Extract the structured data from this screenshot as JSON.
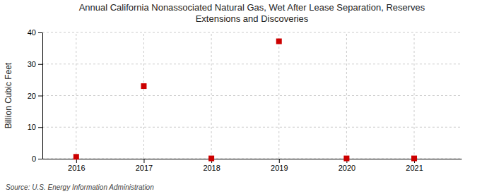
{
  "chart_data": {
    "type": "scatter",
    "title": "Annual California Nonassociated Natural Gas, Wet After Lease Separation, Reserves\nExtensions and Discoveries",
    "y_label": "Billion Cubic Feet",
    "source": "Source: U.S. Energy Information Administration",
    "x": [
      2016,
      2017,
      2018,
      2019,
      2020,
      2021
    ],
    "values": [
      0.6,
      23.0,
      0.1,
      37.2,
      0.1,
      0.1
    ],
    "xlim": [
      2015.5,
      2021.7
    ],
    "ylim": [
      0,
      40
    ],
    "xticks": [
      2016,
      2017,
      2018,
      2019,
      2020,
      2021
    ],
    "yticks": [
      0,
      10,
      20,
      30,
      40
    ],
    "color": "#cc0000",
    "marker": "square",
    "grid": true
  }
}
